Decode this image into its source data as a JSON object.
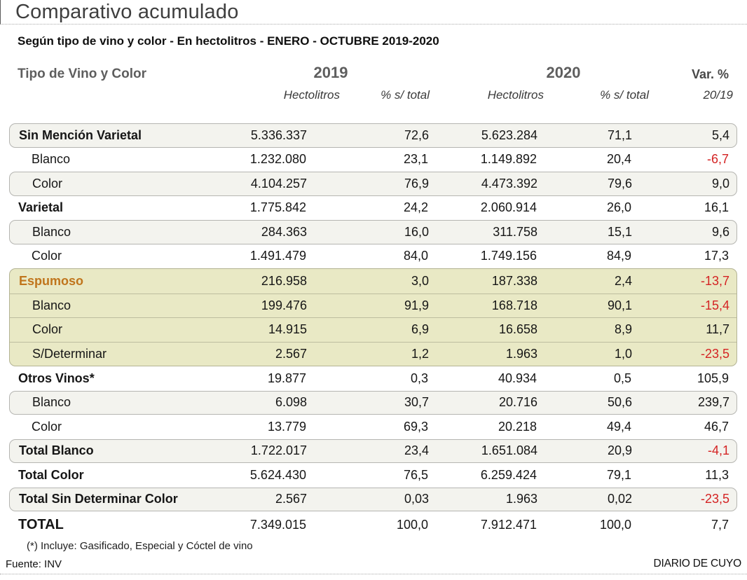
{
  "title": "Comparativo acumulado",
  "subtitle": "Según tipo de vino y color - En hectolitros - ENERO - OCTUBRE 2019-2020",
  "header": {
    "col_group_label": "Tipo de Vino y Color",
    "year_2019": "2019",
    "year_2020": "2020",
    "var_label": "Var. %",
    "var_sublabel": "20/19",
    "hectolitros_label": "Hectolitros",
    "pct_label": "% s/ total"
  },
  "chart_data": {
    "type": "table",
    "title": "Comparativo acumulado",
    "subtitle": "Según tipo de vino y color - En hectolitros - ENERO - OCTUBRE 2019-2020",
    "columns": [
      "Tipo de Vino y Color",
      "2019 Hectolitros",
      "2019 % s/ total",
      "2020 Hectolitros",
      "2020 % s/ total",
      "Var. % 20/19"
    ],
    "rows": [
      {
        "label": "Sin Mención Varietal",
        "hl2019": "5.336.337",
        "pct2019": "72,6",
        "hl2020": "5.623.284",
        "pct2020": "71,1",
        "var": "5,4",
        "style": "parent",
        "bg": "pill"
      },
      {
        "label": "Blanco",
        "hl2019": "1.232.080",
        "pct2019": "23,1",
        "hl2020": "1.149.892",
        "pct2020": "20,4",
        "var": "-6,7",
        "style": "sub",
        "bg": "plain"
      },
      {
        "label": "Color",
        "hl2019": "4.104.257",
        "pct2019": "76,9",
        "hl2020": "4.473.392",
        "pct2020": "79,6",
        "var": "9,0",
        "style": "sub",
        "bg": "pill"
      },
      {
        "label": "Varietal",
        "hl2019": "1.775.842",
        "pct2019": "24,2",
        "hl2020": "2.060.914",
        "pct2020": "26,0",
        "var": "16,1",
        "style": "parent",
        "bg": "plain"
      },
      {
        "label": "Blanco",
        "hl2019": "284.363",
        "pct2019": "16,0",
        "hl2020": "311.758",
        "pct2020": "15,1",
        "var": "9,6",
        "style": "sub",
        "bg": "pill"
      },
      {
        "label": "Color",
        "hl2019": "1.491.479",
        "pct2019": "84,0",
        "hl2020": "1.749.156",
        "pct2020": "84,9",
        "var": "17,3",
        "style": "sub",
        "bg": "plain"
      },
      {
        "label": "Espumoso",
        "hl2019": "216.958",
        "pct2019": "3,0",
        "hl2020": "187.338",
        "pct2020": "2,4",
        "var": "-13,7",
        "style": "espumoso",
        "bg": "espumoso"
      },
      {
        "label": "Blanco",
        "hl2019": "199.476",
        "pct2019": "91,9",
        "hl2020": "168.718",
        "pct2020": "90,1",
        "var": "-15,4",
        "style": "sub",
        "bg": "espumoso"
      },
      {
        "label": "Color",
        "hl2019": "14.915",
        "pct2019": "6,9",
        "hl2020": "16.658",
        "pct2020": "8,9",
        "var": "11,7",
        "style": "sub",
        "bg": "espumoso"
      },
      {
        "label": "S/Determinar",
        "hl2019": "2.567",
        "pct2019": "1,2",
        "hl2020": "1.963",
        "pct2020": "1,0",
        "var": "-23,5",
        "style": "sub",
        "bg": "espumoso"
      },
      {
        "label": "Otros Vinos*",
        "hl2019": "19.877",
        "pct2019": "0,3",
        "hl2020": "40.934",
        "pct2020": "0,5",
        "var": "105,9",
        "style": "parent",
        "bg": "plain"
      },
      {
        "label": "Blanco",
        "hl2019": "6.098",
        "pct2019": "30,7",
        "hl2020": "20.716",
        "pct2020": "50,6",
        "var": "239,7",
        "style": "sub",
        "bg": "pill"
      },
      {
        "label": "Color",
        "hl2019": "13.779",
        "pct2019": "69,3",
        "hl2020": "20.218",
        "pct2020": "49,4",
        "var": "46,7",
        "style": "sub",
        "bg": "plain"
      },
      {
        "label": "Total Blanco",
        "hl2019": "1.722.017",
        "pct2019": "23,4",
        "hl2020": "1.651.084",
        "pct2020": "20,9",
        "var": "-4,1",
        "style": "parent",
        "bg": "pill"
      },
      {
        "label": "Total Color",
        "hl2019": "5.624.430",
        "pct2019": "76,5",
        "hl2020": "6.259.424",
        "pct2020": "79,1",
        "var": "11,3",
        "style": "parent",
        "bg": "plain"
      },
      {
        "label": "Total Sin Determinar Color",
        "hl2019": "2.567",
        "pct2019": "0,03",
        "hl2020": "1.963",
        "pct2020": "0,02",
        "var": "-23,5",
        "style": "parent",
        "bg": "pill"
      },
      {
        "label": "TOTAL",
        "hl2019": "7.349.015",
        "pct2019": "100,0",
        "hl2020": "7.912.471",
        "pct2020": "100,0",
        "var": "7,7",
        "style": "grand",
        "bg": "plain"
      }
    ]
  },
  "footnote": "(*) Incluye: Gasificado, Especial y Cóctel de vino",
  "source": "Fuente: INV",
  "credit": "DIARIO DE CUYO",
  "colors": {
    "accent_orange": "#c0751c",
    "negative_red": "#d42323",
    "pill_bg": "#f3f3ee",
    "espumoso_bg": "#e9e9c5",
    "header_gray": "#5e5e5e"
  }
}
